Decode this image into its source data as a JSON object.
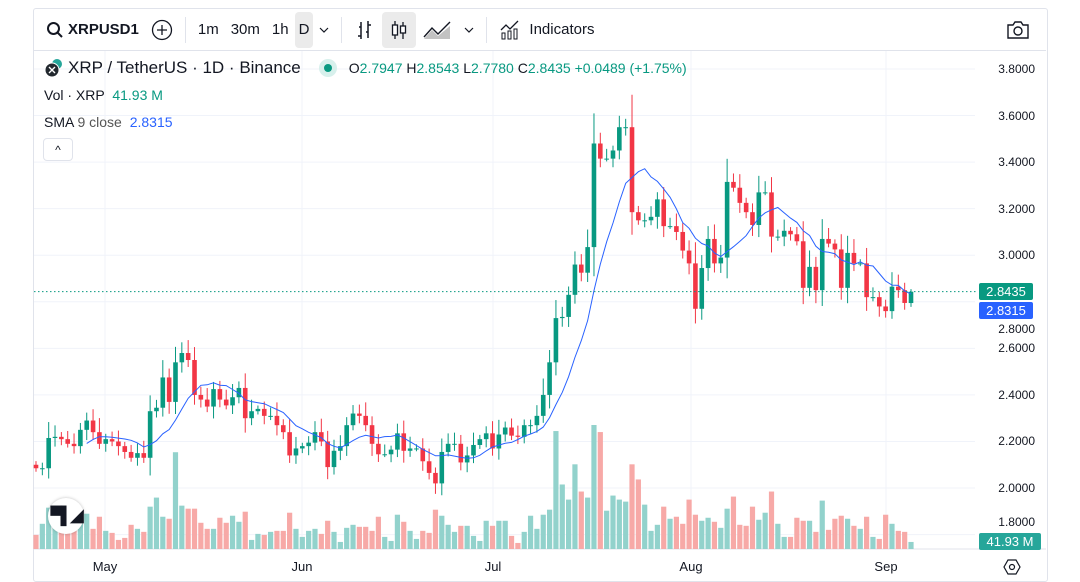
{
  "toolbar": {
    "symbol": "XRPUSD1",
    "intervals": [
      "1m",
      "30m",
      "1h",
      "D"
    ],
    "active_interval": "D",
    "indicators_label": "Indicators",
    "icons": [
      "search-icon",
      "add-symbol-icon",
      "chevron-down-icon",
      "bar-chart-icon",
      "candles-icon",
      "area-chart-icon",
      "indicators-icon",
      "camera-icon"
    ]
  },
  "legend": {
    "title": "XRP / TetherUS · 1D · Binance",
    "o_label": "O",
    "open": "2.7947",
    "h_label": "H",
    "high": "2.8543",
    "l_label": "L",
    "low": "2.7780",
    "c_label": "C",
    "close": "2.8435",
    "change": "+0.0489 (+1.75%)",
    "vol_label": "Vol · XRP",
    "vol_value": "41.93 M",
    "sma_label": "SMA",
    "sma_params": "9 close",
    "sma_value": "2.8315",
    "collapse_icon": "^"
  },
  "price_axis": {
    "ticks": [
      "3.8000",
      "3.6000",
      "3.4000",
      "3.2000",
      "3.0000",
      "2.8000",
      "2.6000",
      "2.4000",
      "2.2000",
      "2.0000",
      "1.8000"
    ],
    "last_price_tag": "2.8435",
    "sma_tag": "2.8315",
    "volume_tag": "41.93 M"
  },
  "time_axis": {
    "months": [
      "May",
      "Jun",
      "Jul",
      "Aug",
      "Sep"
    ]
  },
  "logo_text": "TV",
  "colors": {
    "up": "#089981",
    "down": "#f23645",
    "up_vol": "#92d2cc",
    "down_vol": "#f7a9a7",
    "sma": "#2962ff"
  },
  "chart_data": {
    "type": "candlestick",
    "ylim": [
      1.8,
      3.8
    ],
    "first_open": 2.1,
    "last_candle": {
      "open": 2.7947,
      "high": 2.8543,
      "low": 2.778,
      "close": 2.8435
    },
    "close": [
      2.085,
      2.085,
      2.215,
      2.22,
      2.21,
      2.19,
      2.18,
      2.25,
      2.29,
      2.24,
      2.19,
      2.21,
      2.2,
      2.18,
      2.155,
      2.13,
      2.15,
      2.13,
      2.33,
      2.345,
      2.475,
      2.37,
      2.54,
      2.58,
      2.55,
      2.4,
      2.38,
      2.35,
      2.425,
      2.38,
      2.355,
      2.39,
      2.43,
      2.3,
      2.33,
      2.34,
      2.31,
      2.31,
      2.27,
      2.24,
      2.14,
      2.17,
      2.18,
      2.195,
      2.24,
      2.2,
      2.09,
      2.16,
      2.18,
      2.27,
      2.32,
      2.31,
      2.27,
      2.19,
      2.145,
      2.145,
      2.165,
      2.235,
      2.16,
      2.17,
      2.17,
      2.115,
      2.065,
      2.02,
      2.155,
      2.19,
      2.19,
      2.11,
      2.14,
      2.185,
      2.21,
      2.235,
      2.17,
      2.23,
      2.26,
      2.225,
      2.22,
      2.27,
      2.27,
      2.31,
      2.4,
      2.54,
      2.73,
      2.735,
      2.83,
      2.96,
      2.925,
      3.035,
      3.48,
      3.415,
      3.415,
      3.45,
      3.55,
      3.55,
      3.185,
      3.15,
      3.15,
      3.165,
      3.24,
      3.125,
      3.125,
      3.1,
      3.02,
      2.965,
      2.77,
      2.945,
      3.07,
      2.965,
      2.99,
      3.315,
      3.29,
      3.225,
      3.185,
      3.13,
      3.27,
      3.27,
      3.08,
      3.08,
      3.105,
      3.09,
      3.06,
      2.86,
      2.95,
      2.85,
      3.07,
      3.05,
      3.025,
      2.86,
      3.01,
      2.965,
      2.965,
      2.82,
      2.82,
      2.78,
      2.76,
      2.865,
      2.85,
      2.795,
      2.8435
    ],
    "volume_m": [
      84,
      150,
      246,
      204,
      144,
      204,
      132,
      192,
      210,
      120,
      192,
      108,
      96,
      54,
      66,
      144,
      120,
      102,
      252,
      306,
      192,
      180,
      576,
      258,
      240,
      240,
      156,
      120,
      120,
      186,
      156,
      198,
      162,
      222,
      54,
      90,
      84,
      102,
      108,
      108,
      216,
      120,
      72,
      108,
      120,
      90,
      168,
      102,
      42,
      126,
      144,
      132,
      132,
      108,
      192,
      72,
      48,
      204,
      162,
      108,
      60,
      108,
      96,
      234,
      198,
      144,
      102,
      138,
      138,
      78,
      48,
      168,
      138,
      168,
      168,
      78,
      36,
      102,
      198,
      120,
      204,
      234,
      702,
      384,
      294,
      504,
      342,
      306,
      738,
      696,
      228,
      318,
      294,
      282,
      504,
      414,
      264,
      108,
      144,
      252,
      180,
      192,
      150,
      294,
      204,
      168,
      186,
      162,
      126,
      240,
      312,
      144,
      138,
      252,
      174,
      216,
      342,
      150,
      72,
      72,
      186,
      168,
      168,
      102,
      288,
      114,
      180,
      198,
      180,
      138,
      120,
      192,
      72,
      60,
      204,
      150,
      108,
      102,
      41.93
    ],
    "sma_period": 9
  }
}
